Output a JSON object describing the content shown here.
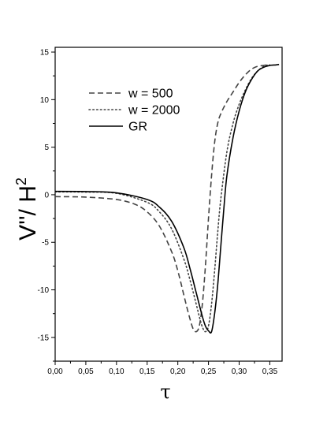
{
  "chart_data": {
    "type": "line",
    "xlabel": "τ",
    "ylabel": "V''/ H",
    "ylabel_sup": "2",
    "xlim": [
      0.0,
      0.37
    ],
    "ylim": [
      -17.5,
      15.5
    ],
    "xticks": [
      "0,00",
      "0,05",
      "0,10",
      "0,15",
      "0,20",
      "0,25",
      "0,30",
      "0,35"
    ],
    "yticks": [
      "15",
      "10",
      "5",
      "0",
      "-5",
      "-10",
      "-15"
    ],
    "legend_position": "top-left",
    "grid": false,
    "series": [
      {
        "name": "w = 500",
        "style": "dashed",
        "color": "#444444",
        "x": [
          0.0,
          0.05,
          0.1,
          0.13,
          0.15,
          0.17,
          0.19,
          0.2,
          0.21,
          0.215,
          0.22,
          0.225,
          0.23,
          0.235,
          0.24,
          0.245,
          0.25,
          0.255,
          0.26,
          0.265,
          0.27,
          0.28,
          0.29,
          0.3,
          0.31,
          0.32,
          0.33,
          0.34,
          0.345
        ],
        "y": [
          -0.2,
          -0.25,
          -0.5,
          -1.0,
          -1.8,
          -3.3,
          -6.0,
          -8.0,
          -10.6,
          -11.9,
          -13.1,
          -14.1,
          -14.4,
          -13.8,
          -11.5,
          -7.5,
          -2.5,
          2.0,
          5.5,
          7.5,
          8.5,
          9.8,
          10.8,
          11.8,
          12.6,
          13.2,
          13.5,
          13.6,
          13.65
        ]
      },
      {
        "name": "w = 2000",
        "style": "dotted",
        "color": "#444444",
        "x": [
          0.0,
          0.05,
          0.1,
          0.15,
          0.17,
          0.19,
          0.21,
          0.22,
          0.23,
          0.235,
          0.24,
          0.245,
          0.25,
          0.255,
          0.26,
          0.265,
          0.27,
          0.28,
          0.29,
          0.3,
          0.31,
          0.32,
          0.33,
          0.34,
          0.345,
          0.35
        ],
        "y": [
          0.3,
          0.28,
          0.15,
          -0.8,
          -1.8,
          -3.6,
          -6.8,
          -9.0,
          -11.5,
          -12.8,
          -13.9,
          -14.4,
          -13.8,
          -11.5,
          -8.0,
          -4.0,
          -0.5,
          4.5,
          7.5,
          9.5,
          11.0,
          12.2,
          13.0,
          13.5,
          13.62,
          13.65
        ]
      },
      {
        "name": "GR",
        "style": "solid",
        "color": "#000000",
        "x": [
          0.0,
          0.05,
          0.1,
          0.15,
          0.17,
          0.19,
          0.21,
          0.22,
          0.23,
          0.24,
          0.245,
          0.25,
          0.255,
          0.26,
          0.265,
          0.27,
          0.275,
          0.28,
          0.29,
          0.3,
          0.31,
          0.32,
          0.33,
          0.34,
          0.35,
          0.36,
          0.365
        ],
        "y": [
          0.35,
          0.33,
          0.2,
          -0.5,
          -1.3,
          -2.8,
          -5.6,
          -7.8,
          -10.3,
          -12.8,
          -13.8,
          -14.3,
          -14.4,
          -12.5,
          -9.5,
          -5.5,
          -1.5,
          2.0,
          6.0,
          8.8,
          10.8,
          12.1,
          13.0,
          13.4,
          13.6,
          13.65,
          13.7
        ]
      }
    ]
  }
}
